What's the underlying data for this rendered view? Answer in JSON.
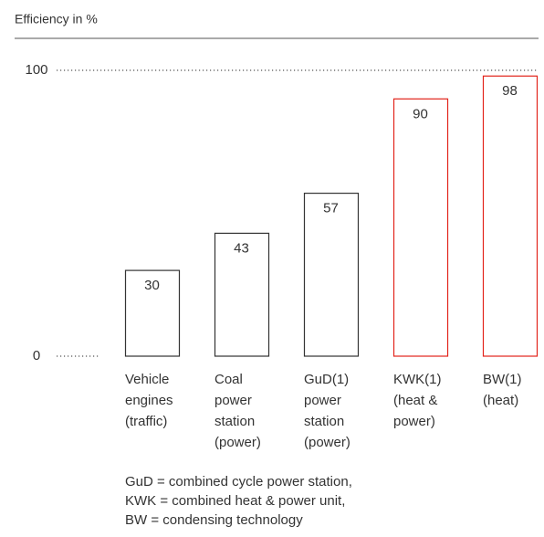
{
  "chart_data": {
    "type": "bar",
    "title": "Efficiency in %",
    "categories": [
      "Vehicle\nengines\n(traffic)",
      "Coal\npower\nstation\n(power)",
      "GuD(1)\npower\nstation\n(power)",
      "KWK(1)\n(heat &\npower)",
      "BW(1)\n(heat)"
    ],
    "values": [
      30,
      43,
      57,
      90,
      98
    ],
    "colors": [
      "#333333",
      "#333333",
      "#333333",
      "#e2231a",
      "#e2231a"
    ],
    "ylim": [
      0,
      100
    ],
    "yticks": [
      0,
      100
    ],
    "grid": true,
    "notes": [
      "GuD = combined cycle power station,",
      "KWK = combined heat & power unit,",
      "BW = condensing technology"
    ]
  }
}
